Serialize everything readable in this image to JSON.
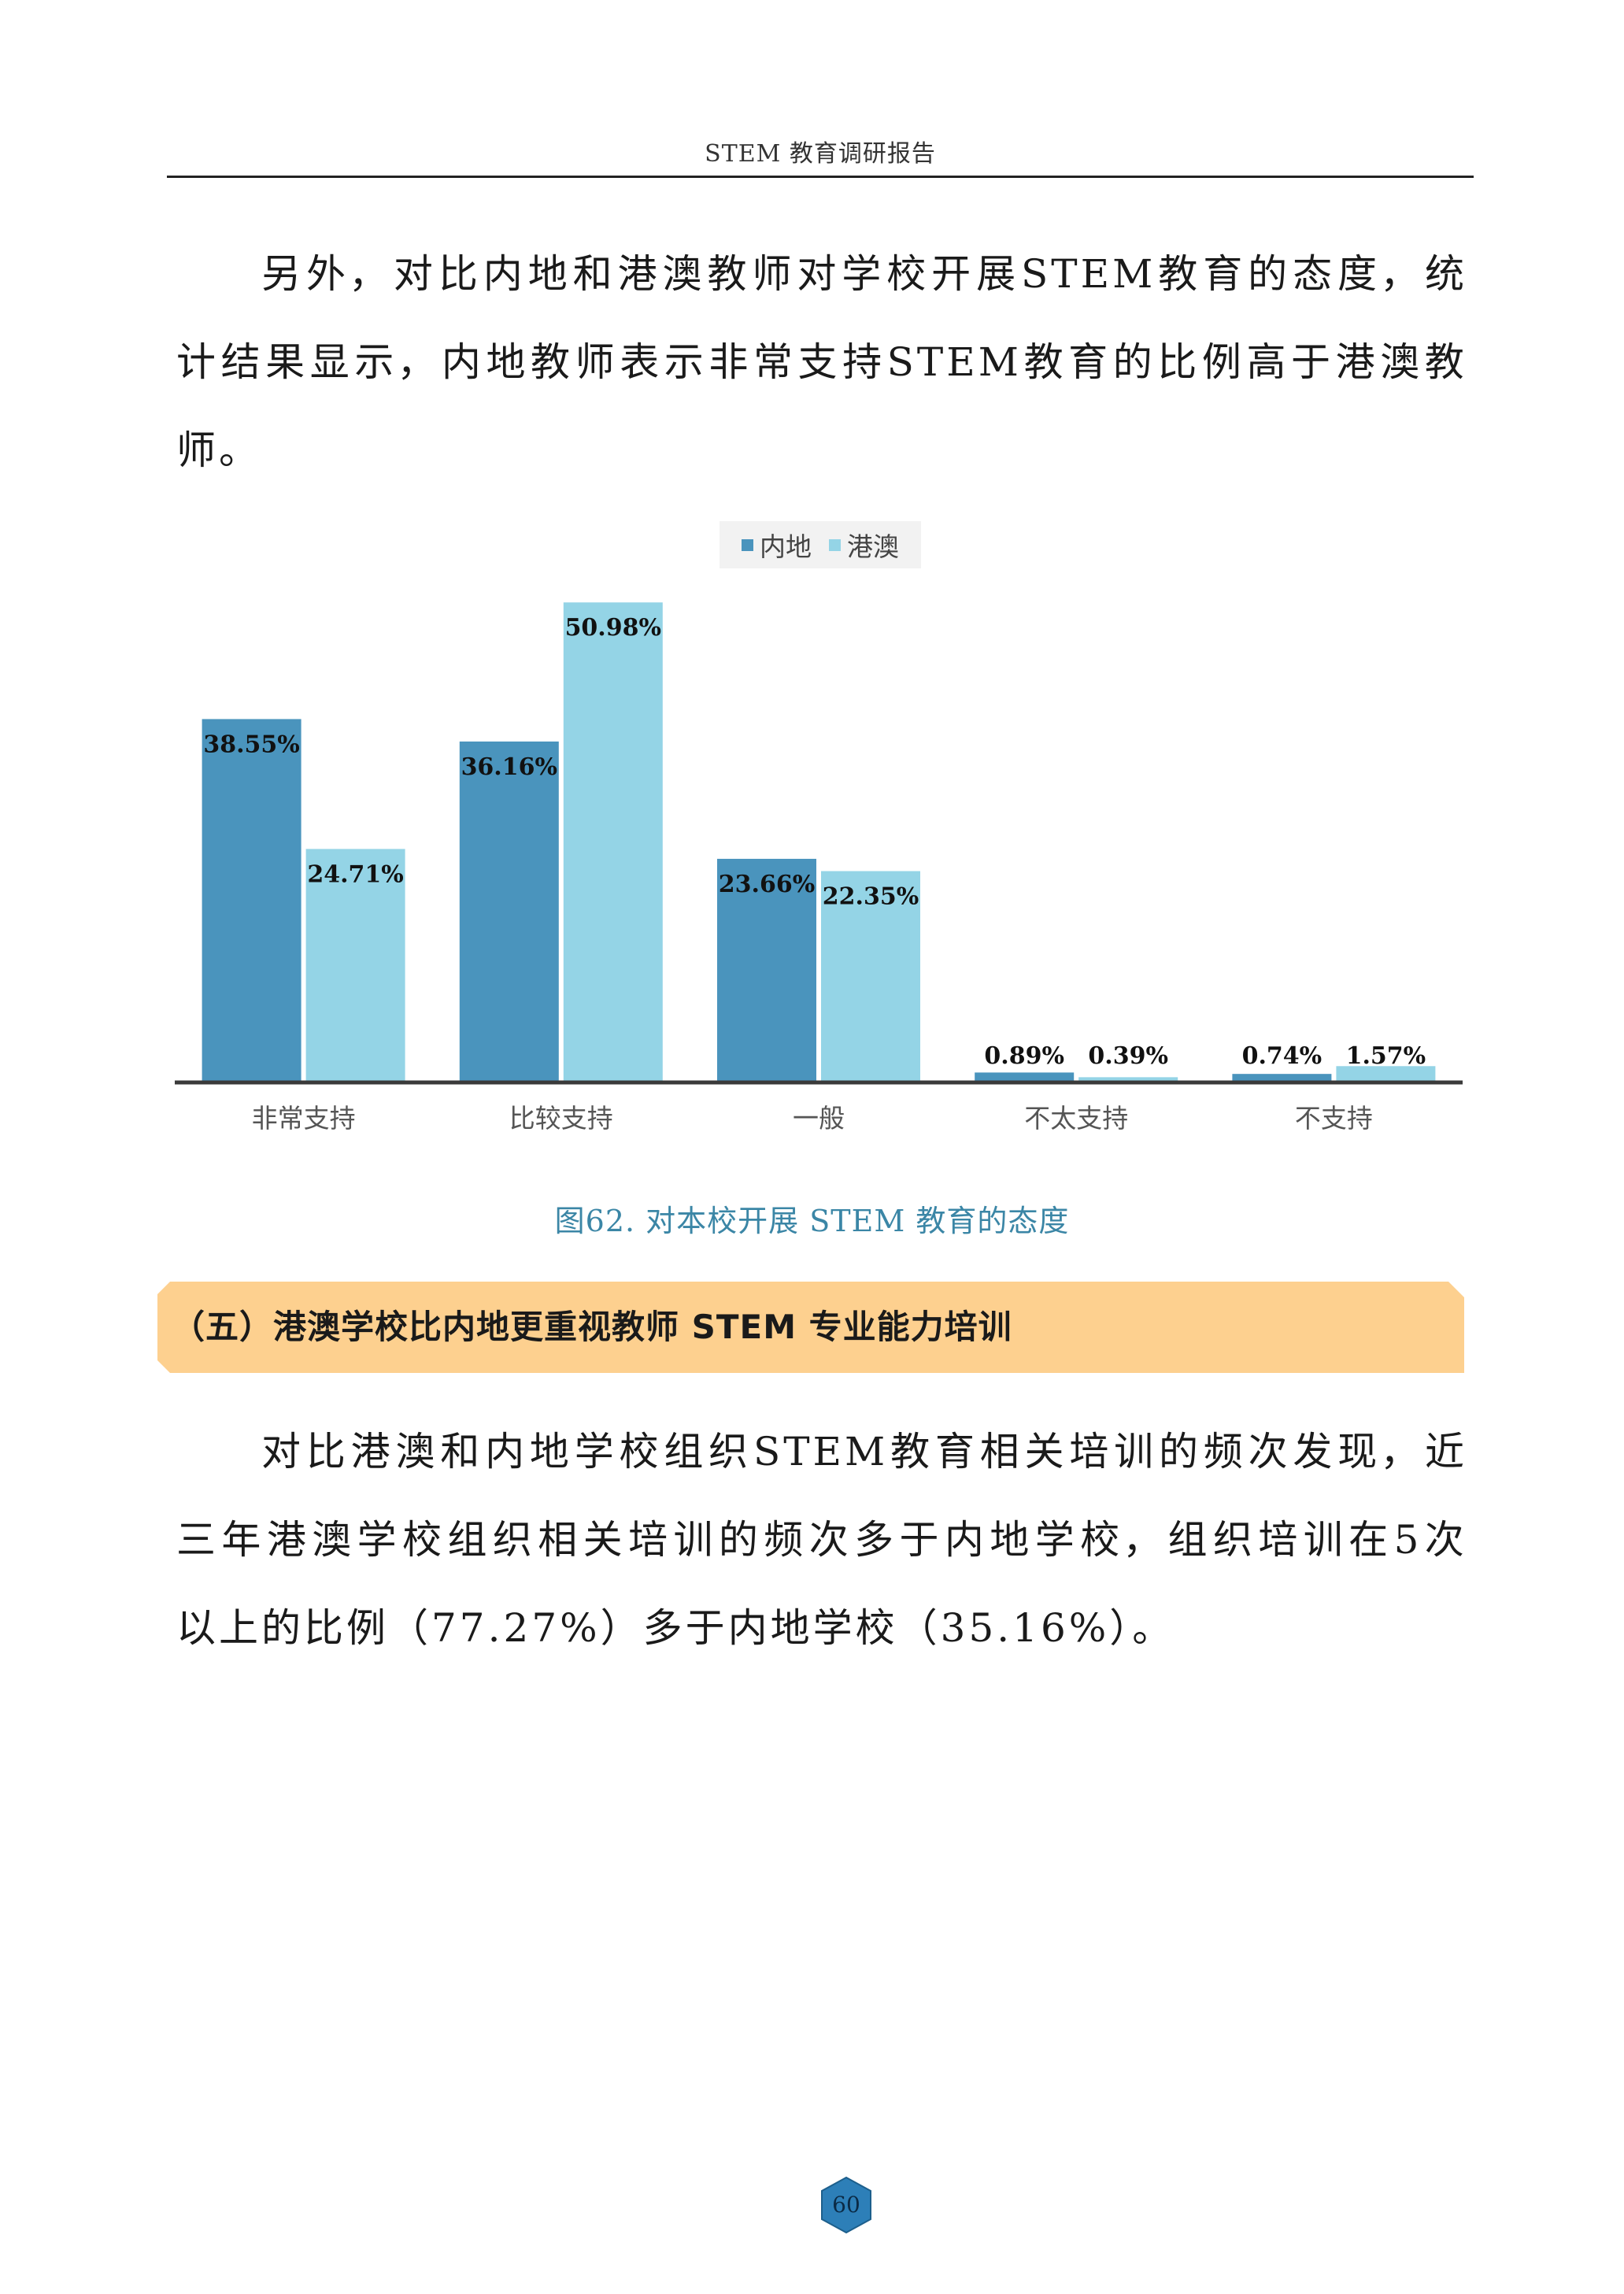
{
  "header": {
    "title": "STEM 教育调研报告"
  },
  "para1": {
    "lines": [
      [
        "另",
        "外，",
        "对",
        "比",
        "内",
        "地",
        "和",
        "港",
        "澳",
        "教",
        "师",
        "对",
        "学",
        "校",
        "开",
        "展",
        "STEM",
        "教",
        "育",
        "的",
        "态",
        "度，",
        "统"
      ],
      [
        "计",
        "结",
        "果",
        "显",
        "示，",
        "内",
        "地",
        "教",
        "师",
        "表",
        "示",
        "非",
        "常",
        "支",
        "持",
        "STEM",
        "教",
        "育",
        "的",
        "比",
        "例",
        "高",
        "于",
        "港",
        "澳",
        "教"
      ],
      [
        "师。"
      ]
    ]
  },
  "legend": [
    {
      "name": "内地",
      "color": "#4a94bd"
    },
    {
      "name": "港澳",
      "color": "#94d4e6"
    }
  ],
  "chart_data": {
    "type": "bar",
    "categories": [
      "非常支持",
      "比较支持",
      "一般",
      "不太支持",
      "不支持"
    ],
    "series": [
      {
        "name": "内地",
        "values": [
          38.55,
          36.16,
          23.66,
          0.89,
          0.74
        ],
        "labels": [
          "38.55%",
          "36.16%",
          "23.66%",
          "0.89%",
          "0.74%"
        ],
        "color": "#4a94bd"
      },
      {
        "name": "港澳",
        "values": [
          24.71,
          50.98,
          22.35,
          0.39,
          1.57
        ],
        "labels": [
          "24.71%",
          "50.98%",
          "22.35%",
          "0.39%",
          "1.57%"
        ],
        "color": "#94d4e6"
      }
    ],
    "ylim": [
      0,
      51
    ],
    "grid": false,
    "legend_position": "top-center"
  },
  "caption": "图62. 对本校开展 STEM 教育的态度",
  "section": {
    "title": "（五）港澳学校比内地更重视教师 STEM 专业能力培训",
    "color": "#fdd08f"
  },
  "para2": {
    "lines": [
      [
        "对",
        "比",
        "港",
        "澳",
        "和",
        "内",
        "地",
        "学",
        "校",
        "组",
        "织",
        "STEM",
        "教",
        "育",
        "相",
        "关",
        "培",
        "训",
        "的",
        "频",
        "次",
        "发",
        "现，",
        "近"
      ],
      [
        "三",
        "年",
        "港",
        "澳",
        "学",
        "校",
        "组",
        "织",
        "相",
        "关",
        "培",
        "训",
        "的",
        "频",
        "次",
        "多",
        "于",
        "内",
        "地",
        "学",
        "校，",
        "组",
        "织",
        "培",
        "训",
        "在",
        "5",
        "次"
      ],
      [
        "以上的比例（77.27%）多于内地学校（35.16%）。"
      ]
    ]
  },
  "page": {
    "number": "60",
    "badge_color": "#2d7fb8"
  }
}
